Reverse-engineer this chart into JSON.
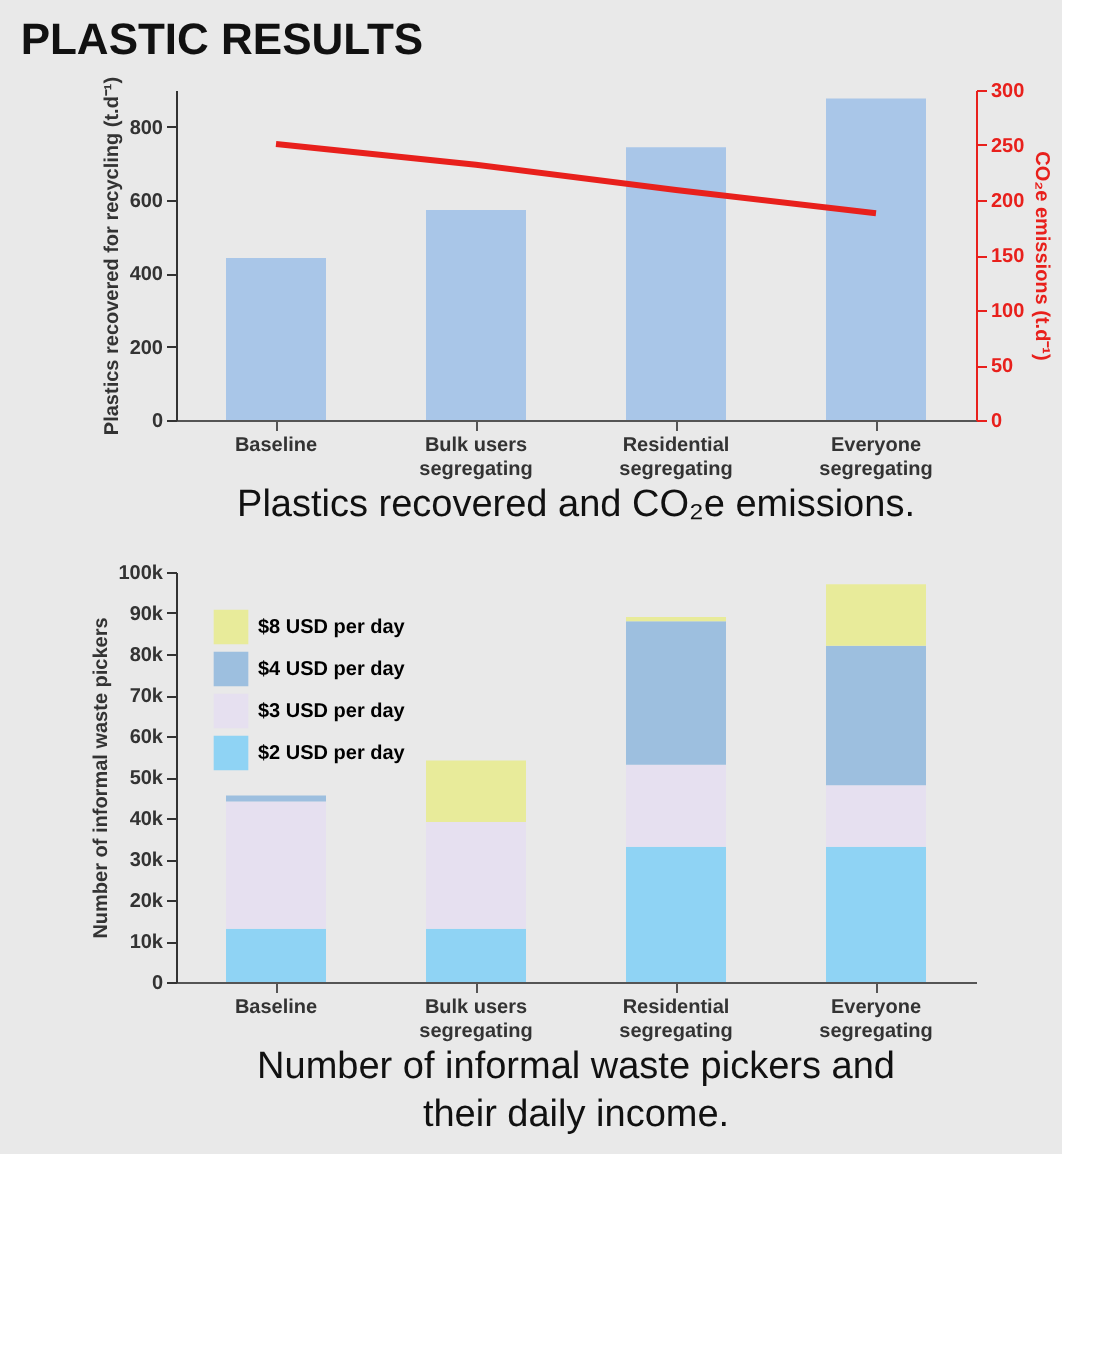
{
  "chart_data": [
    {
      "type": "bar",
      "title": "PLASTIC RESULTS",
      "categories": [
        "Baseline",
        "Bulk users segregating",
        "Residential segregating",
        "Everyone segregating"
      ],
      "ylabel": "Plastics recovered for recycling (t.d⁻¹)",
      "y2label": "CO₂e emissions (t.d⁻¹)",
      "ylim": [
        0,
        900
      ],
      "yticks": [
        0,
        200,
        400,
        600,
        800
      ],
      "y2lim": [
        0,
        300
      ],
      "y2ticks": [
        0,
        50,
        100,
        150,
        200,
        250,
        300
      ],
      "grid": false,
      "legend": false,
      "series": [
        {
          "type": "bar",
          "color": "#a9c6e8",
          "values": [
            442,
            573,
            744,
            877
          ]
        },
        {
          "type": "line",
          "axis": "y2",
          "color": "#e8201c",
          "values": [
            251,
            232,
            209,
            188
          ]
        }
      ],
      "annotations": [
        "Plastics recovered and CO₂e emissions."
      ]
    },
    {
      "type": "bar",
      "stacked": true,
      "categories": [
        "Baseline",
        "Bulk users segregating",
        "Residential segregating",
        "Everyone segregating"
      ],
      "ylabel": "Number of informal waste pickers",
      "ylim": [
        0,
        100000
      ],
      "yticks": [
        {
          "value": 0,
          "label": "0"
        },
        {
          "value": 10000,
          "label": "10k"
        },
        {
          "value": 20000,
          "label": "20k"
        },
        {
          "value": 30000,
          "label": "30k"
        },
        {
          "value": 40000,
          "label": "40k"
        },
        {
          "value": 50000,
          "label": "50k"
        },
        {
          "value": 60000,
          "label": "60k"
        },
        {
          "value": 70000,
          "label": "70k"
        },
        {
          "value": 80000,
          "label": "80k"
        },
        {
          "value": 90000,
          "label": "90k"
        },
        {
          "value": 100000,
          "label": "100k"
        }
      ],
      "grid": false,
      "legend": "top left",
      "series": [
        {
          "name": "$2 USD per day",
          "color": "#8fd3f4",
          "values": [
            13000,
            13000,
            33000,
            33000
          ]
        },
        {
          "name": "$3 USD per day",
          "color": "#e6e0f0",
          "values": [
            31000,
            26000,
            20000,
            15000
          ]
        },
        {
          "name": "$4 USD per day",
          "color": "#9dbfdf",
          "values": [
            1500,
            0,
            35000,
            34000
          ]
        },
        {
          "name": "$8 USD per day",
          "color": "#e8eb9a",
          "values": [
            0,
            15000,
            1000,
            15000
          ]
        }
      ],
      "annotations": [
        "Number of informal waste pickers and their daily income."
      ]
    }
  ]
}
